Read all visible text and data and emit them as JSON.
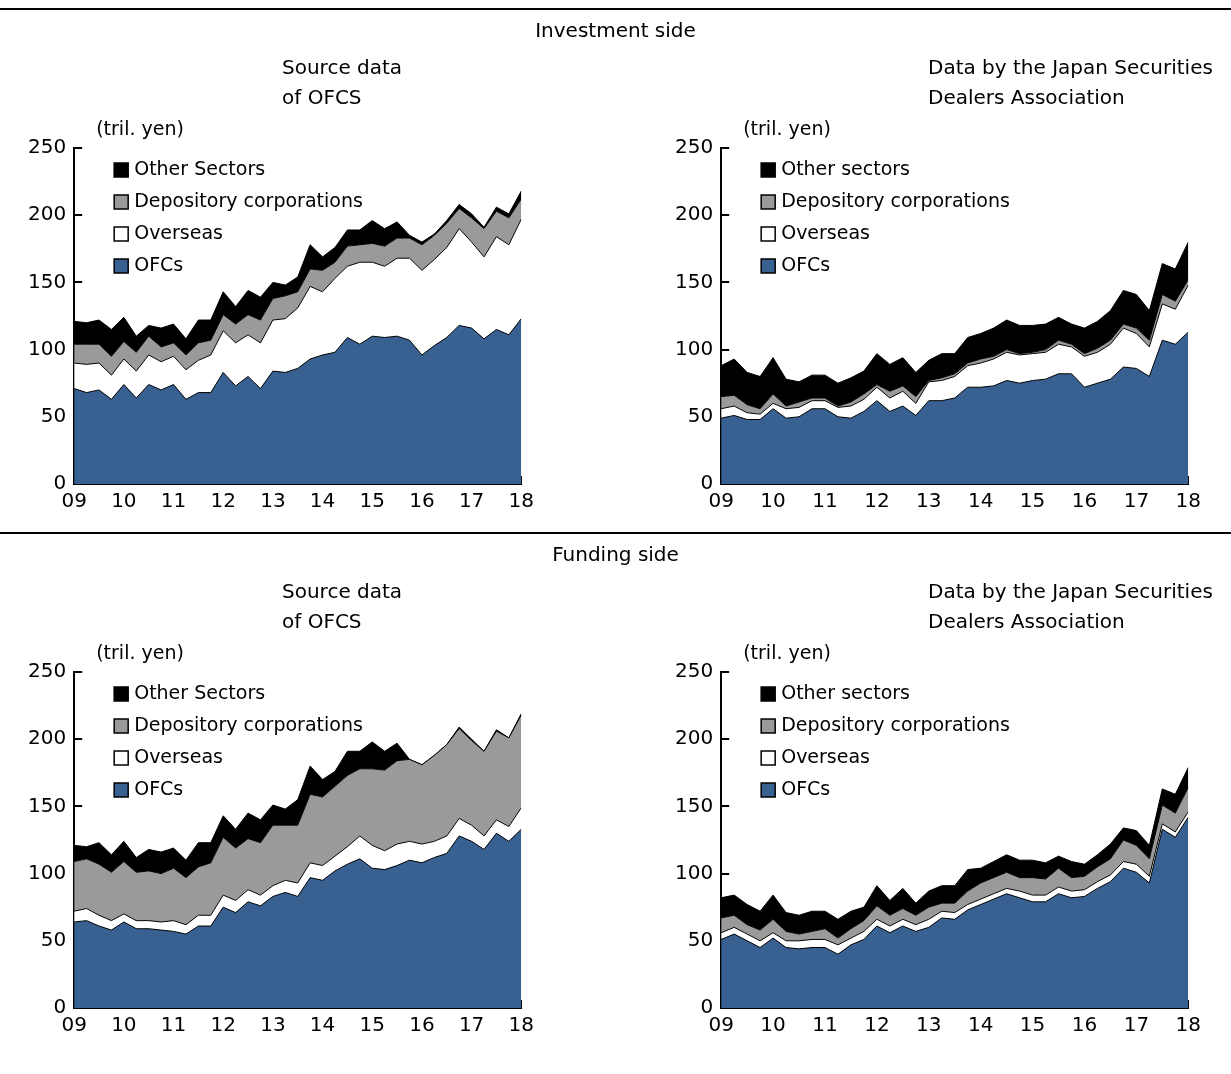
{
  "chart_data": [
    {
      "type": "area",
      "stacked": true,
      "annotations": [
        "Investment side"
      ],
      "title": "Source data of OFCS",
      "ylabel": "(tril. yen)",
      "legend": "top left",
      "grid": false,
      "x": [
        2009,
        2009.25,
        2009.5,
        2009.75,
        2010,
        2010.25,
        2010.5,
        2010.75,
        2011,
        2011.25,
        2011.5,
        2011.75,
        2012,
        2012.25,
        2012.5,
        2012.75,
        2013,
        2013.25,
        2013.5,
        2013.75,
        2014,
        2014.25,
        2014.5,
        2014.75,
        2015,
        2015.25,
        2015.5,
        2015.75,
        2016,
        2016.25,
        2016.5,
        2016.75,
        2017,
        2017.25,
        2017.5,
        2017.75,
        2018
      ],
      "xlim": [
        2009,
        2018
      ],
      "xticks": [
        {
          "value": 2009,
          "label": "09"
        },
        {
          "value": 2010,
          "label": "10"
        },
        {
          "value": 2011,
          "label": "11"
        },
        {
          "value": 2012,
          "label": "12"
        },
        {
          "value": 2013,
          "label": "13"
        },
        {
          "value": 2014,
          "label": "14"
        },
        {
          "value": 2015,
          "label": "15"
        },
        {
          "value": 2016,
          "label": "16"
        },
        {
          "value": 2017,
          "label": "17"
        },
        {
          "value": 2018,
          "label": "18"
        }
      ],
      "ylim": [
        0,
        250
      ],
      "yticks": [
        0,
        50,
        100,
        150,
        200,
        250
      ],
      "series": [
        {
          "name": "OFCs",
          "color": "#386192",
          "values": [
            71,
            68,
            70,
            63,
            74,
            64,
            74,
            70,
            74,
            63,
            68,
            68,
            83,
            73,
            80,
            71,
            84,
            83,
            86,
            93,
            96,
            98,
            109,
            104,
            110,
            109,
            110,
            107,
            96,
            103,
            109,
            118,
            116,
            108,
            115,
            111,
            123
          ]
        },
        {
          "name": "Overseas",
          "color": "#ffffff",
          "values": [
            19,
            21,
            20,
            18,
            19,
            20,
            22,
            21,
            21,
            22,
            24,
            28,
            31,
            32,
            31,
            34,
            38,
            40,
            45,
            54,
            47,
            55,
            53,
            61,
            55,
            53,
            58,
            61,
            63,
            64,
            67,
            72,
            64,
            61,
            69,
            67,
            74
          ]
        },
        {
          "name": "Depository corporations",
          "color": "#9a9a9a",
          "values": [
            14,
            15,
            14,
            14,
            13,
            14,
            14,
            11,
            10,
            11,
            13,
            11,
            12,
            14,
            15,
            17,
            16,
            17,
            12,
            13,
            16,
            12,
            15,
            13,
            14,
            15,
            15,
            15,
            19,
            18,
            18,
            15,
            18,
            21,
            19,
            20,
            15
          ]
        },
        {
          "name": "Other Sectors",
          "color": "#000000",
          "values": [
            17,
            16,
            18,
            20,
            18,
            12,
            8,
            14,
            14,
            12,
            17,
            15,
            17,
            13,
            18,
            17,
            12,
            8,
            11,
            18,
            10,
            11,
            12,
            11,
            17,
            13,
            12,
            2,
            2,
            1,
            2,
            3,
            3,
            1,
            3,
            3,
            6
          ]
        }
      ]
    },
    {
      "type": "area",
      "stacked": true,
      "title": "Data by the Japan Securities Dealers Association",
      "ylabel": "(tril. yen)",
      "legend": "top left",
      "grid": false,
      "x": [
        2009,
        2009.25,
        2009.5,
        2009.75,
        2010,
        2010.25,
        2010.5,
        2010.75,
        2011,
        2011.25,
        2011.5,
        2011.75,
        2012,
        2012.25,
        2012.5,
        2012.75,
        2013,
        2013.25,
        2013.5,
        2013.75,
        2014,
        2014.25,
        2014.5,
        2014.75,
        2015,
        2015.25,
        2015.5,
        2015.75,
        2016,
        2016.25,
        2016.5,
        2016.75,
        2017,
        2017.25,
        2017.5,
        2017.75,
        2018
      ],
      "xlim": [
        2009,
        2018
      ],
      "xticks": [
        {
          "value": 2009,
          "label": "09"
        },
        {
          "value": 2010,
          "label": "10"
        },
        {
          "value": 2011,
          "label": "11"
        },
        {
          "value": 2012,
          "label": "12"
        },
        {
          "value": 2013,
          "label": "13"
        },
        {
          "value": 2014,
          "label": "14"
        },
        {
          "value": 2015,
          "label": "15"
        },
        {
          "value": 2016,
          "label": "16"
        },
        {
          "value": 2017,
          "label": "17"
        },
        {
          "value": 2018,
          "label": "18"
        }
      ],
      "ylim": [
        0,
        250
      ],
      "yticks": [
        0,
        50,
        100,
        150,
        200,
        250
      ],
      "series": [
        {
          "name": "OFCs",
          "color": "#386192",
          "values": [
            49,
            51,
            48,
            48,
            56,
            49,
            50,
            56,
            56,
            50,
            49,
            54,
            62,
            54,
            58,
            51,
            62,
            62,
            64,
            72,
            72,
            73,
            77,
            75,
            77,
            78,
            82,
            82,
            72,
            75,
            78,
            87,
            86,
            80,
            107,
            104,
            113
          ]
        },
        {
          "name": "Overseas",
          "color": "#ffffff",
          "values": [
            7,
            7,
            5,
            4,
            4,
            7,
            7,
            6,
            6,
            7,
            9,
            9,
            10,
            10,
            11,
            9,
            14,
            15,
            16,
            16,
            18,
            20,
            21,
            21,
            20,
            20,
            22,
            20,
            23,
            23,
            26,
            29,
            26,
            22,
            27,
            26,
            35
          ]
        },
        {
          "name": "Depository corporations",
          "color": "#9a9a9a",
          "values": [
            9,
            8,
            6,
            4,
            7,
            2,
            4,
            2,
            2,
            1,
            3,
            4,
            2,
            5,
            4,
            5,
            1,
            2,
            2,
            2,
            3,
            2,
            2,
            1,
            1,
            2,
            3,
            2,
            2,
            3,
            3,
            3,
            4,
            5,
            7,
            6,
            4
          ]
        },
        {
          "name": "Other sectors",
          "color": "#000000",
          "values": [
            23,
            27,
            24,
            24,
            27,
            20,
            15,
            17,
            17,
            17,
            18,
            17,
            23,
            20,
            21,
            18,
            15,
            18,
            15,
            19,
            19,
            21,
            22,
            21,
            20,
            19,
            17,
            15,
            19,
            20,
            22,
            25,
            25,
            22,
            23,
            24,
            28
          ]
        }
      ]
    },
    {
      "type": "area",
      "stacked": true,
      "annotations": [
        "Funding side"
      ],
      "title": "Source data of OFCS",
      "ylabel": "(tril. yen)",
      "legend": "top left",
      "grid": false,
      "x": [
        2009,
        2009.25,
        2009.5,
        2009.75,
        2010,
        2010.25,
        2010.5,
        2010.75,
        2011,
        2011.25,
        2011.5,
        2011.75,
        2012,
        2012.25,
        2012.5,
        2012.75,
        2013,
        2013.25,
        2013.5,
        2013.75,
        2014,
        2014.25,
        2014.5,
        2014.75,
        2015,
        2015.25,
        2015.5,
        2015.75,
        2016,
        2016.25,
        2016.5,
        2016.75,
        2017,
        2017.25,
        2017.5,
        2017.75,
        2018
      ],
      "xlim": [
        2009,
        2018
      ],
      "xticks": [
        {
          "value": 2009,
          "label": "09"
        },
        {
          "value": 2010,
          "label": "10"
        },
        {
          "value": 2011,
          "label": "11"
        },
        {
          "value": 2012,
          "label": "12"
        },
        {
          "value": 2013,
          "label": "13"
        },
        {
          "value": 2014,
          "label": "14"
        },
        {
          "value": 2015,
          "label": "15"
        },
        {
          "value": 2016,
          "label": "16"
        },
        {
          "value": 2017,
          "label": "17"
        },
        {
          "value": 2018,
          "label": "18"
        }
      ],
      "ylim": [
        0,
        250
      ],
      "yticks": [
        0,
        50,
        100,
        150,
        200,
        250
      ],
      "series": [
        {
          "name": "OFCs",
          "color": "#386192",
          "values": [
            64,
            65,
            61,
            58,
            64,
            59,
            59,
            58,
            57,
            55,
            61,
            61,
            75,
            71,
            79,
            76,
            83,
            86,
            83,
            97,
            95,
            102,
            107,
            111,
            104,
            103,
            106,
            110,
            108,
            112,
            115,
            128,
            124,
            118,
            130,
            124,
            133
          ]
        },
        {
          "name": "Overseas",
          "color": "#ffffff",
          "values": [
            8,
            9,
            8,
            7,
            6,
            6,
            6,
            6,
            8,
            7,
            8,
            8,
            9,
            9,
            9,
            8,
            8,
            9,
            10,
            11,
            11,
            11,
            13,
            17,
            17,
            14,
            16,
            14,
            14,
            12,
            13,
            13,
            12,
            10,
            10,
            11,
            16
          ]
        },
        {
          "name": "Depository corporations",
          "color": "#9a9a9a",
          "values": [
            37,
            37,
            38,
            36,
            39,
            36,
            37,
            36,
            39,
            35,
            36,
            39,
            43,
            39,
            38,
            39,
            45,
            41,
            43,
            51,
            51,
            52,
            53,
            50,
            57,
            60,
            62,
            61,
            59,
            64,
            68,
            67,
            63,
            63,
            66,
            66,
            69
          ]
        },
        {
          "name": "Other Sectors",
          "color": "#000000",
          "values": [
            12,
            9,
            16,
            13,
            15,
            11,
            16,
            16,
            15,
            13,
            18,
            15,
            16,
            14,
            19,
            17,
            15,
            12,
            19,
            21,
            13,
            11,
            18,
            13,
            20,
            14,
            13,
            0,
            0,
            0,
            0,
            1,
            1,
            0,
            1,
            0,
            1
          ]
        }
      ]
    },
    {
      "type": "area",
      "stacked": true,
      "title": "Data by the Japan Securities Dealers Association",
      "ylabel": "(tril. yen)",
      "legend": "top left",
      "grid": false,
      "x": [
        2009,
        2009.25,
        2009.5,
        2009.75,
        2010,
        2010.25,
        2010.5,
        2010.75,
        2011,
        2011.25,
        2011.5,
        2011.75,
        2012,
        2012.25,
        2012.5,
        2012.75,
        2013,
        2013.25,
        2013.5,
        2013.75,
        2014,
        2014.25,
        2014.5,
        2014.75,
        2015,
        2015.25,
        2015.5,
        2015.75,
        2016,
        2016.25,
        2016.5,
        2016.75,
        2017,
        2017.25,
        2017.5,
        2017.75,
        2018
      ],
      "xlim": [
        2009,
        2018
      ],
      "xticks": [
        {
          "value": 2009,
          "label": "09"
        },
        {
          "value": 2010,
          "label": "10"
        },
        {
          "value": 2011,
          "label": "11"
        },
        {
          "value": 2012,
          "label": "12"
        },
        {
          "value": 2013,
          "label": "13"
        },
        {
          "value": 2014,
          "label": "14"
        },
        {
          "value": 2015,
          "label": "15"
        },
        {
          "value": 2016,
          "label": "16"
        },
        {
          "value": 2017,
          "label": "17"
        },
        {
          "value": 2018,
          "label": "18"
        }
      ],
      "ylim": [
        0,
        250
      ],
      "yticks": [
        0,
        50,
        100,
        150,
        200,
        250
      ],
      "series": [
        {
          "name": "OFCs",
          "color": "#386192",
          "values": [
            51,
            55,
            50,
            45,
            52,
            45,
            44,
            45,
            45,
            40,
            47,
            51,
            61,
            56,
            61,
            57,
            60,
            67,
            66,
            73,
            77,
            81,
            85,
            82,
            79,
            79,
            85,
            82,
            83,
            89,
            94,
            104,
            101,
            93,
            133,
            127,
            142
          ]
        },
        {
          "name": "Overseas",
          "color": "#ffffff",
          "values": [
            5,
            5,
            5,
            5,
            4,
            5,
            6,
            6,
            6,
            7,
            5,
            6,
            5,
            5,
            5,
            5,
            6,
            5,
            5,
            4,
            4,
            4,
            4,
            5,
            5,
            5,
            5,
            5,
            5,
            5,
            5,
            5,
            6,
            5,
            4,
            4,
            4
          ]
        },
        {
          "name": "Depository corporations",
          "color": "#9a9a9a",
          "values": [
            11,
            9,
            7,
            8,
            10,
            7,
            5,
            6,
            8,
            5,
            7,
            8,
            10,
            8,
            8,
            7,
            9,
            6,
            7,
            10,
            12,
            12,
            12,
            10,
            13,
            12,
            14,
            10,
            10,
            11,
            12,
            16,
            14,
            13,
            14,
            14,
            18
          ]
        },
        {
          "name": "Other sectors",
          "color": "#000000",
          "values": [
            15,
            15,
            15,
            14,
            18,
            14,
            14,
            15,
            13,
            14,
            13,
            10,
            15,
            11,
            15,
            9,
            12,
            13,
            13,
            16,
            11,
            12,
            13,
            13,
            13,
            12,
            9,
            12,
            9,
            9,
            11,
            9,
            11,
            10,
            12,
            14,
            15
          ]
        }
      ]
    }
  ]
}
